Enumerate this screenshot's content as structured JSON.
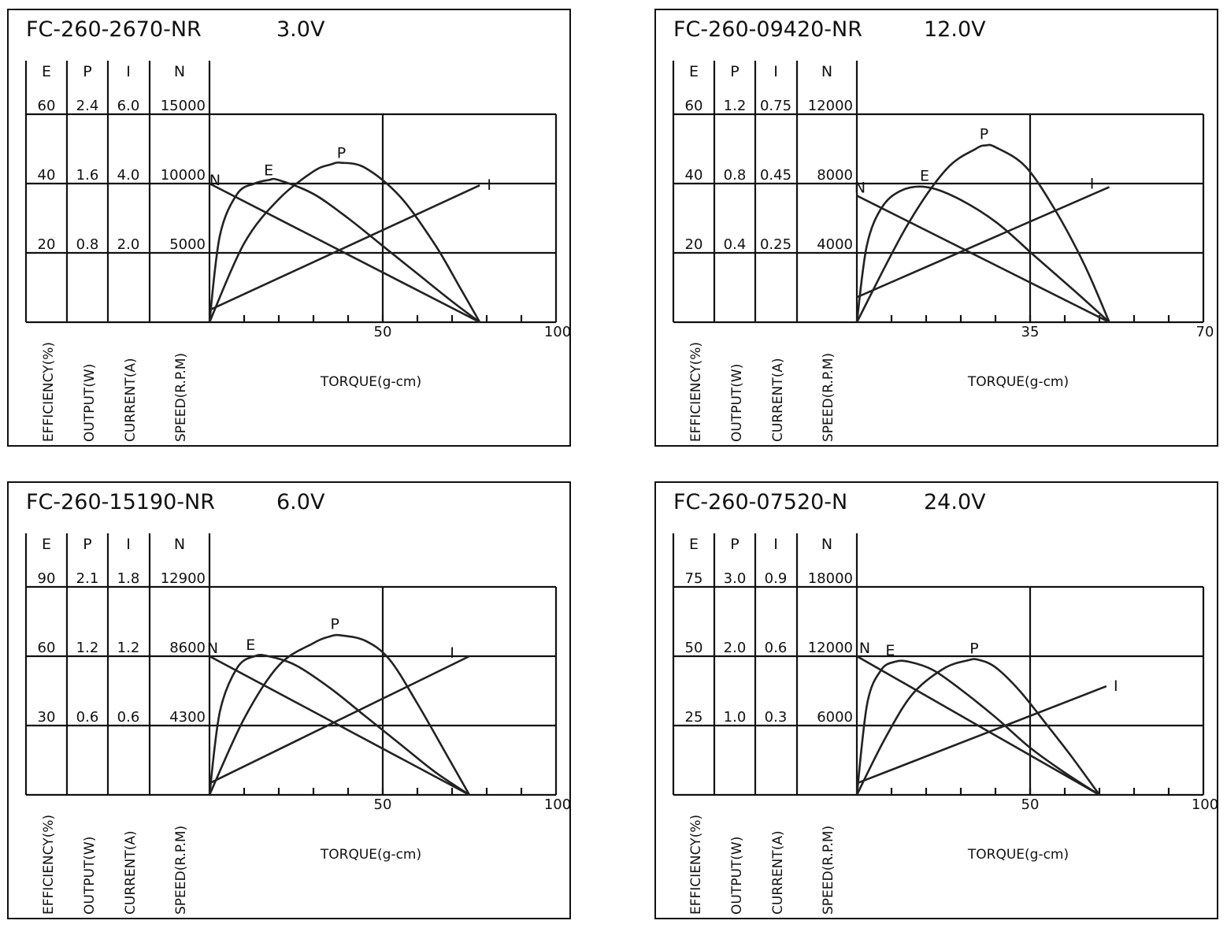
{
  "columns": [
    "E",
    "P",
    "I",
    "N"
  ],
  "axis_labels": [
    "EFFICIENCY(%)",
    "OUTPUT(W)",
    "CURRENT(A)",
    "SPEED(R.P.M)"
  ],
  "xlabel": "TORQUE(g-cm)",
  "chart_data": [
    {
      "type": "line",
      "model": "FC-260-2670-NR",
      "voltage": "3.0V",
      "columns": {
        "E": [
          "60",
          "40",
          "20"
        ],
        "P": [
          "2.4",
          "1.6",
          "0.8"
        ],
        "I": [
          "6.0",
          "4.0",
          "2.0"
        ],
        "N": [
          "15000",
          "10000",
          "5000"
        ]
      },
      "x_ticks": [
        "50",
        "100"
      ],
      "xlim": [
        0,
        100
      ],
      "series": [
        {
          "name": "N",
          "points": [
            [
              0,
              10000
            ],
            [
              78,
              0
            ]
          ]
        },
        {
          "name": "I",
          "points": [
            [
              0,
              0.35
            ],
            [
              78,
              3.95
            ]
          ]
        },
        {
          "name": "P",
          "points": [
            [
              0,
              0
            ],
            [
              10,
              0.91
            ],
            [
              20,
              1.42
            ],
            [
              30,
              1.74
            ],
            [
              35,
              1.82
            ],
            [
              38,
              1.84
            ],
            [
              45,
              1.78
            ],
            [
              55,
              1.45
            ],
            [
              65,
              0.9
            ],
            [
              72,
              0.42
            ],
            [
              78,
              0
            ]
          ]
        },
        {
          "name": "E",
          "points": [
            [
              0,
              0
            ],
            [
              3,
              25
            ],
            [
              8,
              37
            ],
            [
              13,
              40
            ],
            [
              17,
              41
            ],
            [
              20,
              41
            ],
            [
              30,
              37
            ],
            [
              40,
              30
            ],
            [
              50,
              22
            ],
            [
              60,
              14
            ],
            [
              70,
              6
            ],
            [
              78,
              0
            ]
          ]
        }
      ]
    },
    {
      "type": "line",
      "model": "FC-260-09420-NR",
      "voltage": "12.0V",
      "columns": {
        "E": [
          "60",
          "40",
          "20"
        ],
        "P": [
          "1.2",
          "0.8",
          "0.4"
        ],
        "I": [
          "0.75",
          "0.45",
          "0.25"
        ],
        "N": [
          "12000",
          "8000",
          "4000"
        ]
      },
      "x_ticks": [
        "35",
        "70"
      ],
      "xlim": [
        0,
        70
      ],
      "series": [
        {
          "name": "N",
          "points": [
            [
              0,
              7300
            ],
            [
              51,
              0
            ]
          ]
        },
        {
          "name": "I",
          "points": [
            [
              0,
              0.09
            ],
            [
              51,
              0.44
            ]
          ]
        },
        {
          "name": "P",
          "points": [
            [
              0,
              0
            ],
            [
              10,
              0.55
            ],
            [
              18,
              0.88
            ],
            [
              24,
              1.0
            ],
            [
              26,
              1.02
            ],
            [
              28,
              1.01
            ],
            [
              34,
              0.9
            ],
            [
              40,
              0.65
            ],
            [
              46,
              0.33
            ],
            [
              51,
              0
            ]
          ]
        },
        {
          "name": "E",
          "points": [
            [
              0,
              0
            ],
            [
              2,
              22
            ],
            [
              5,
              33
            ],
            [
              9,
              38
            ],
            [
              14,
              39
            ],
            [
              20,
              36
            ],
            [
              28,
              29
            ],
            [
              36,
              19
            ],
            [
              44,
              9
            ],
            [
              51,
              0
            ]
          ]
        }
      ]
    },
    {
      "type": "line",
      "model": "FC-260-15190-NR",
      "voltage": "6.0V",
      "columns": {
        "E": [
          "90",
          "60",
          "30"
        ],
        "P": [
          "2.1",
          "1.2",
          "0.6"
        ],
        "I": [
          "1.8",
          "1.2",
          "0.6"
        ],
        "N": [
          "12900",
          "8600",
          "4300"
        ]
      },
      "x_ticks": [
        "50",
        "100"
      ],
      "xlim": [
        0,
        100
      ],
      "series": [
        {
          "name": "N",
          "points": [
            [
              0,
              8600
            ],
            [
              75,
              0
            ]
          ]
        },
        {
          "name": "I",
          "points": [
            [
              0,
              0.1
            ],
            [
              75,
              1.2
            ]
          ]
        },
        {
          "name": "P",
          "points": [
            [
              0,
              0
            ],
            [
              10,
              0.66
            ],
            [
              20,
              1.12
            ],
            [
              30,
              1.37
            ],
            [
              35,
              1.46
            ],
            [
              38,
              1.47
            ],
            [
              45,
              1.4
            ],
            [
              52,
              1.17
            ],
            [
              60,
              0.79
            ],
            [
              68,
              0.37
            ],
            [
              75,
              0
            ]
          ]
        },
        {
          "name": "E",
          "points": [
            [
              0,
              0
            ],
            [
              3,
              36
            ],
            [
              8,
              55
            ],
            [
              13,
              60
            ],
            [
              17,
              60
            ],
            [
              25,
              56
            ],
            [
              35,
              46
            ],
            [
              45,
              34
            ],
            [
              55,
              22
            ],
            [
              65,
              10
            ],
            [
              75,
              0
            ]
          ]
        }
      ]
    },
    {
      "type": "line",
      "model": "FC-260-07520-N",
      "voltage": "24.0V",
      "columns": {
        "E": [
          "75",
          "50",
          "25"
        ],
        "P": [
          "3.0",
          "2.0",
          "1.0"
        ],
        "I": [
          "0.9",
          "0.6",
          "0.3"
        ],
        "N": [
          "18000",
          "12000",
          "6000"
        ]
      },
      "x_ticks": [
        "50",
        "100"
      ],
      "xlim": [
        0,
        100
      ],
      "series": [
        {
          "name": "N",
          "points": [
            [
              0,
              12000
            ],
            [
              70,
              0
            ]
          ]
        },
        {
          "name": "I",
          "points": [
            [
              0,
              0.05
            ],
            [
              72,
              0.47
            ]
          ]
        },
        {
          "name": "P",
          "points": [
            [
              0,
              0
            ],
            [
              8,
              0.8
            ],
            [
              16,
              1.45
            ],
            [
              25,
              1.82
            ],
            [
              32,
              1.94
            ],
            [
              35,
              1.95
            ],
            [
              40,
              1.84
            ],
            [
              47,
              1.5
            ],
            [
              55,
              1.0
            ],
            [
              62,
              0.55
            ],
            [
              70,
              0
            ]
          ]
        },
        {
          "name": "E",
          "points": [
            [
              0,
              0
            ],
            [
              3,
              33
            ],
            [
              7,
              45
            ],
            [
              11,
              48
            ],
            [
              15,
              48
            ],
            [
              22,
              45
            ],
            [
              30,
              38
            ],
            [
              40,
              28
            ],
            [
              50,
              17
            ],
            [
              60,
              8
            ],
            [
              70,
              0
            ]
          ]
        }
      ]
    }
  ]
}
